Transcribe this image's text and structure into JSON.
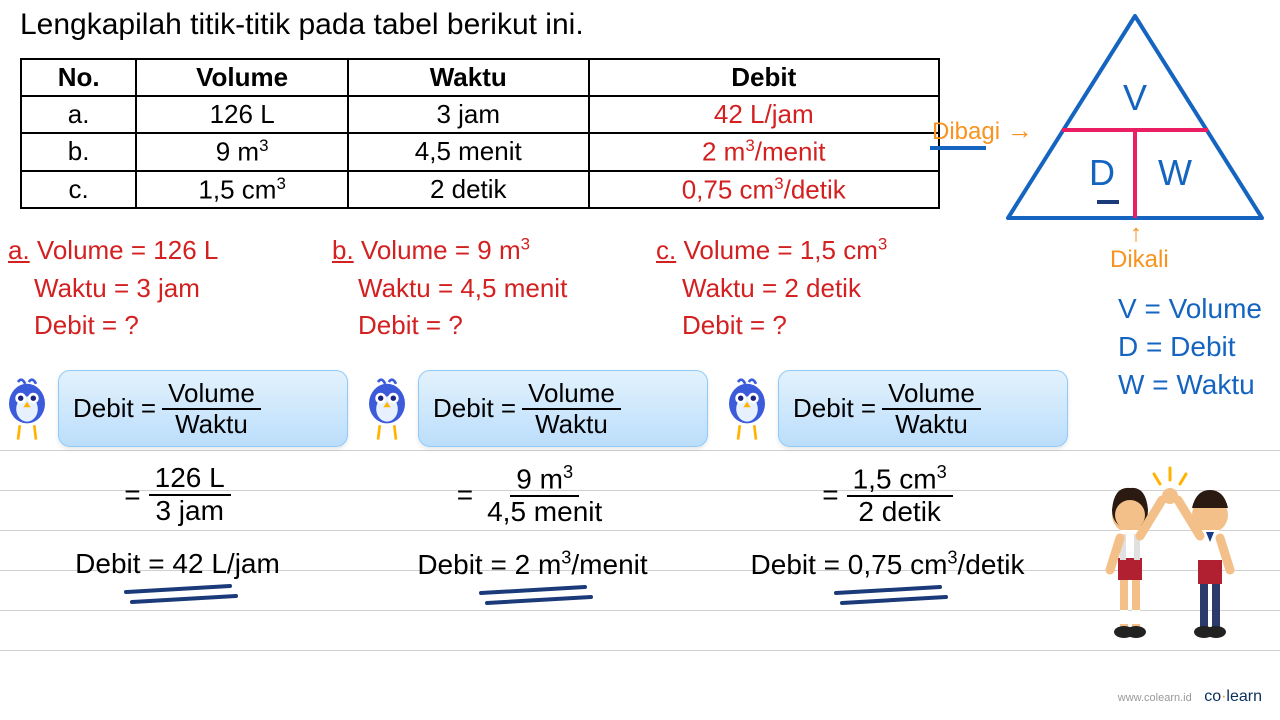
{
  "instruction": "Lengkapilah titik-titik pada tabel berikut ini.",
  "table": {
    "headers": [
      "No.",
      "Volume",
      "Waktu",
      "Debit"
    ],
    "rows": [
      {
        "no": "a.",
        "volume": "126 L",
        "waktu": "3 jam",
        "debit": "42 L/jam"
      },
      {
        "no": "b.",
        "volume_html": "9 m<sup>3</sup>",
        "waktu": "4,5 menit",
        "debit_html": "2 m<sup>3</sup>/menit"
      },
      {
        "no": "c.",
        "volume_html": "1,5 cm<sup>3</sup>",
        "waktu": "2 detik",
        "debit_html": "0,75 cm<sup>3</sup>/detik"
      }
    ]
  },
  "triangle": {
    "top": "V",
    "left": "D",
    "right": "W",
    "dibagi": "Dibagi",
    "dikali": "Dikali",
    "stroke_color": "#1565c0",
    "divider_color": "#e91e63"
  },
  "legend": {
    "v": "V = Volume",
    "d": "D = Debit",
    "w": "W = Waktu"
  },
  "solutions": [
    {
      "label": "a.",
      "volume": "Volume = 126 L",
      "waktu": "Waktu = 3 jam",
      "debit_q": "Debit = ?",
      "calc_num": "126 L",
      "calc_den": "3 jam",
      "result": "Debit = 42 L/jam"
    },
    {
      "label": "b.",
      "volume_html": "Volume = 9 m<sup>3</sup>",
      "waktu": "Waktu = 4,5 menit",
      "debit_q": "Debit = ?",
      "calc_num_html": "9 m<sup>3</sup>",
      "calc_den": "4,5 menit",
      "result_html": "Debit = 2 m<sup>3</sup>/menit"
    },
    {
      "label": "c.",
      "volume_html": "Volume = 1,5 cm<sup>3</sup>",
      "waktu": "Waktu = 2 detik",
      "debit_q": "Debit = ?",
      "calc_num_html": "1,5 cm<sup>3</sup>",
      "calc_den": "2 detik",
      "result_html": "Debit = 0,75 cm<sup>3</sup>/detik"
    }
  ],
  "formula": {
    "lhs": "Debit =",
    "num": "Volume",
    "den": "Waktu"
  },
  "colors": {
    "red": "#d32020",
    "blue": "#1565c0",
    "orange": "#f7931e",
    "bubble_border": "#90caf9",
    "underline_dark": "#1b3a7a"
  },
  "brand": {
    "url": "www.colearn.id",
    "co": "co",
    "dot": "·",
    "learn": "learn"
  }
}
